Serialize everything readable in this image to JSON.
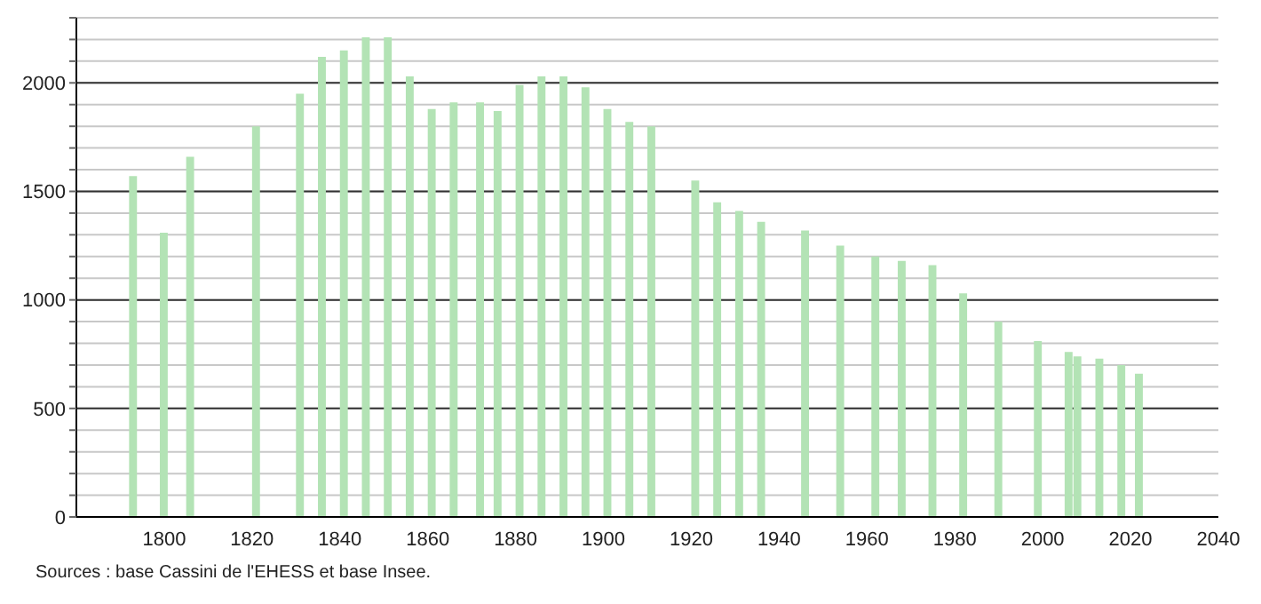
{
  "chart_data": {
    "type": "bar",
    "x": [
      1793,
      1800,
      1806,
      1821,
      1831,
      1836,
      1841,
      1846,
      1851,
      1856,
      1861,
      1866,
      1872,
      1876,
      1881,
      1886,
      1891,
      1896,
      1901,
      1906,
      1911,
      1921,
      1926,
      1931,
      1936,
      1946,
      1954,
      1962,
      1968,
      1975,
      1982,
      1990,
      1999,
      2006,
      2008,
      2013,
      2018,
      2022
    ],
    "values": [
      1570,
      1310,
      1660,
      1800,
      1950,
      2120,
      2150,
      2210,
      2210,
      2030,
      1880,
      1910,
      1910,
      1870,
      1990,
      2030,
      2030,
      1980,
      1880,
      1820,
      1800,
      1550,
      1450,
      1410,
      1360,
      1320,
      1250,
      1200,
      1180,
      1160,
      1030,
      900,
      810,
      760,
      740,
      730,
      700,
      660
    ],
    "color": "#b3e3b5",
    "xlim": [
      1780,
      2040
    ],
    "xticks": [
      1800,
      1820,
      1840,
      1860,
      1880,
      1900,
      1920,
      1940,
      1960,
      1980,
      2000,
      2020,
      2040
    ],
    "ylim": [
      0,
      2300
    ],
    "yticks": [
      0,
      {
        "value": 100,
        "label": null
      },
      {
        "value": 200,
        "label": null
      },
      {
        "value": 300,
        "label": null
      },
      {
        "value": 400,
        "label": null
      },
      500,
      {
        "value": 600,
        "label": null
      },
      {
        "value": 700,
        "label": null
      },
      {
        "value": 800,
        "label": null
      },
      {
        "value": 900,
        "label": null
      },
      1000,
      {
        "value": 1100,
        "label": null
      },
      {
        "value": 1200,
        "label": null
      },
      {
        "value": 1300,
        "label": null
      },
      {
        "value": 1400,
        "label": null
      },
      1500,
      {
        "value": 1600,
        "label": null
      },
      {
        "value": 1700,
        "label": null
      },
      {
        "value": 1800,
        "label": null
      },
      {
        "value": 1900,
        "label": null
      },
      2000,
      {
        "value": 2100,
        "label": null
      },
      {
        "value": 2200,
        "label": null
      },
      {
        "value": 2300,
        "label": null
      }
    ],
    "grid": "y",
    "annotations": [
      "Sources : base Cassini de l'EHESS et base Insee."
    ]
  }
}
